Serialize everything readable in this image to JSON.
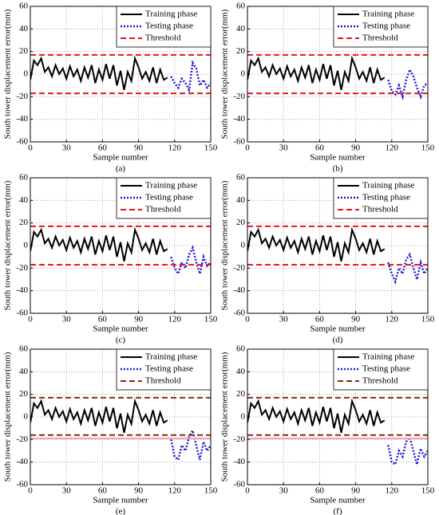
{
  "chart_data": [
    {
      "type": "line",
      "caption": "(a)",
      "xlabel": "Sample number",
      "ylabel": "South tower displacement error(mm)",
      "xlim": [
        0,
        150
      ],
      "ylim": [
        -60,
        60
      ],
      "xticks": [
        0,
        30,
        60,
        90,
        120,
        150
      ],
      "yticks": [
        -60,
        -40,
        -20,
        0,
        20,
        40,
        60
      ],
      "grid": true,
      "legend": "upper right",
      "series": [
        {
          "name": "Training phase",
          "color": "#000000",
          "linestyle": "solid",
          "x": [
            0,
            3,
            6,
            9,
            12,
            15,
            18,
            21,
            24,
            27,
            30,
            33,
            36,
            39,
            42,
            45,
            48,
            51,
            54,
            57,
            60,
            63,
            66,
            69,
            72,
            75,
            78,
            81,
            84,
            87,
            90,
            93,
            96,
            99,
            102,
            105,
            108,
            111,
            114
          ],
          "values": [
            -5,
            12,
            8,
            14,
            2,
            6,
            -2,
            8,
            0,
            5,
            -4,
            7,
            -2,
            4,
            -6,
            6,
            -3,
            8,
            -8,
            4,
            -5,
            9,
            -4,
            8,
            -10,
            3,
            -14,
            2,
            -6,
            14,
            6,
            -4,
            2,
            -6,
            6,
            -8,
            4,
            -5,
            -3
          ]
        },
        {
          "name": "Testing phase",
          "color": "#1f1fd6",
          "linestyle": "dotted",
          "x": [
            117,
            120,
            123,
            126,
            129,
            132,
            135,
            138,
            141,
            144,
            147,
            150
          ],
          "values": [
            -2,
            -8,
            -12,
            -4,
            -8,
            -14,
            10,
            5,
            -10,
            -5,
            -12,
            -8
          ]
        },
        {
          "name": "Threshold",
          "color": "#e8141c",
          "linestyle": "dashed",
          "x": [
            0,
            150,
            0,
            0,
            150
          ],
          "values": [
            17,
            17,
            null,
            -17,
            -17
          ]
        }
      ]
    },
    {
      "type": "line",
      "caption": "(b)",
      "xlabel": "Sample number",
      "ylabel": "South tower displacement error(mm)",
      "xlim": [
        0,
        150
      ],
      "ylim": [
        -60,
        60
      ],
      "xticks": [
        0,
        30,
        60,
        90,
        120,
        150
      ],
      "yticks": [
        -60,
        -40,
        -20,
        0,
        20,
        40,
        60
      ],
      "grid": true,
      "legend": "upper right",
      "series": [
        {
          "name": "Training phase",
          "color": "#000000",
          "linestyle": "solid",
          "x": [
            0,
            3,
            6,
            9,
            12,
            15,
            18,
            21,
            24,
            27,
            30,
            33,
            36,
            39,
            42,
            45,
            48,
            51,
            54,
            57,
            60,
            63,
            66,
            69,
            72,
            75,
            78,
            81,
            84,
            87,
            90,
            93,
            96,
            99,
            102,
            105,
            108,
            111,
            114
          ],
          "values": [
            -5,
            12,
            8,
            14,
            2,
            6,
            -2,
            8,
            0,
            5,
            -4,
            7,
            -2,
            4,
            -6,
            6,
            -3,
            8,
            -8,
            4,
            -5,
            9,
            -4,
            8,
            -10,
            3,
            -14,
            2,
            -6,
            14,
            6,
            -4,
            2,
            -6,
            6,
            -8,
            4,
            -5,
            -3
          ]
        },
        {
          "name": "Testing phase",
          "color": "#1f1fd6",
          "linestyle": "dotted",
          "x": [
            117,
            120,
            123,
            126,
            129,
            132,
            135,
            138,
            141,
            144,
            147,
            150
          ],
          "values": [
            -5,
            -15,
            -18,
            -10,
            -20,
            -5,
            4,
            -2,
            -12,
            -20,
            -10,
            -8
          ]
        },
        {
          "name": "Threshold",
          "color": "#e8141c",
          "linestyle": "dashed",
          "x": [
            0,
            150,
            0,
            0,
            150
          ],
          "values": [
            17,
            17,
            null,
            -17,
            -17
          ]
        }
      ]
    },
    {
      "type": "line",
      "caption": "(c)",
      "xlabel": "Sample number",
      "ylabel": "South tower displacement error(mm)",
      "xlim": [
        0,
        150
      ],
      "ylim": [
        -60,
        60
      ],
      "xticks": [
        0,
        30,
        60,
        90,
        120,
        150
      ],
      "yticks": [
        -60,
        -40,
        -20,
        0,
        20,
        40,
        60
      ],
      "grid": true,
      "legend": "upper right",
      "series": [
        {
          "name": "Training phase",
          "color": "#000000",
          "linestyle": "solid",
          "x": [
            0,
            3,
            6,
            9,
            12,
            15,
            18,
            21,
            24,
            27,
            30,
            33,
            36,
            39,
            42,
            45,
            48,
            51,
            54,
            57,
            60,
            63,
            66,
            69,
            72,
            75,
            78,
            81,
            84,
            87,
            90,
            93,
            96,
            99,
            102,
            105,
            108,
            111,
            114
          ],
          "values": [
            -5,
            12,
            8,
            14,
            2,
            6,
            -2,
            8,
            0,
            5,
            -4,
            7,
            -2,
            4,
            -6,
            6,
            -3,
            8,
            -8,
            4,
            -5,
            9,
            -4,
            8,
            -10,
            3,
            -14,
            2,
            -6,
            14,
            6,
            -4,
            2,
            -6,
            6,
            -8,
            4,
            -5,
            -3
          ]
        },
        {
          "name": "Testing phase",
          "color": "#1f1fd6",
          "linestyle": "dotted",
          "x": [
            117,
            120,
            123,
            126,
            129,
            132,
            135,
            138,
            141,
            144,
            147,
            150
          ],
          "values": [
            -10,
            -20,
            -25,
            -15,
            -20,
            -8,
            -2,
            -15,
            -25,
            -10,
            -18,
            -15
          ]
        },
        {
          "name": "Threshold",
          "color": "#e8141c",
          "linestyle": "dashed",
          "x": [
            0,
            150,
            0,
            0,
            150
          ],
          "values": [
            17,
            17,
            null,
            -17,
            -17
          ]
        }
      ]
    },
    {
      "type": "line",
      "caption": "(d)",
      "xlabel": "Sample number",
      "ylabel": "South tower displacement error(mm)",
      "xlim": [
        0,
        150
      ],
      "ylim": [
        -60,
        60
      ],
      "xticks": [
        0,
        30,
        60,
        90,
        120,
        150
      ],
      "yticks": [
        -60,
        -40,
        -20,
        0,
        20,
        40,
        60
      ],
      "grid": true,
      "legend": "upper right",
      "series": [
        {
          "name": "Training phase",
          "color": "#000000",
          "linestyle": "solid",
          "x": [
            0,
            3,
            6,
            9,
            12,
            15,
            18,
            21,
            24,
            27,
            30,
            33,
            36,
            39,
            42,
            45,
            48,
            51,
            54,
            57,
            60,
            63,
            66,
            69,
            72,
            75,
            78,
            81,
            84,
            87,
            90,
            93,
            96,
            99,
            102,
            105,
            108,
            111,
            114
          ],
          "values": [
            -5,
            12,
            8,
            14,
            2,
            6,
            -2,
            8,
            0,
            5,
            -4,
            7,
            -2,
            4,
            -6,
            6,
            -3,
            8,
            -8,
            4,
            -5,
            9,
            -4,
            8,
            -10,
            3,
            -14,
            2,
            -6,
            14,
            6,
            -4,
            2,
            -6,
            6,
            -8,
            4,
            -5,
            -3
          ]
        },
        {
          "name": "Testing phase",
          "color": "#1f1fd6",
          "linestyle": "dotted",
          "x": [
            117,
            120,
            123,
            126,
            129,
            132,
            135,
            138,
            141,
            144,
            147,
            150
          ],
          "values": [
            -15,
            -25,
            -32,
            -20,
            -25,
            -12,
            -8,
            -20,
            -30,
            -15,
            -25,
            -20
          ]
        },
        {
          "name": "Threshold",
          "color": "#e8141c",
          "linestyle": "dashed",
          "x": [
            0,
            150,
            0,
            0,
            150
          ],
          "values": [
            17,
            17,
            null,
            -17,
            -17
          ]
        }
      ]
    },
    {
      "type": "line",
      "caption": "(e)",
      "xlabel": "Sample number",
      "ylabel": "South tower displacement error(mm)",
      "xlim": [
        0,
        150
      ],
      "ylim": [
        -60,
        60
      ],
      "xticks": [
        0,
        30,
        60,
        90,
        120,
        150
      ],
      "yticks": [
        -60,
        -40,
        -20,
        0,
        20,
        40,
        60
      ],
      "grid": true,
      "legend": "upper right",
      "series": [
        {
          "name": "Training phase",
          "color": "#000000",
          "linestyle": "solid",
          "x": [
            0,
            3,
            6,
            9,
            12,
            15,
            18,
            21,
            24,
            27,
            30,
            33,
            36,
            39,
            42,
            45,
            48,
            51,
            54,
            57,
            60,
            63,
            66,
            69,
            72,
            75,
            78,
            81,
            84,
            87,
            90,
            93,
            96,
            99,
            102,
            105,
            108,
            111,
            114
          ],
          "values": [
            -5,
            12,
            8,
            14,
            2,
            6,
            -2,
            8,
            0,
            5,
            -4,
            7,
            -2,
            4,
            -6,
            6,
            -3,
            8,
            -8,
            4,
            -5,
            9,
            -4,
            8,
            -10,
            3,
            -14,
            2,
            -6,
            14,
            6,
            -4,
            2,
            -6,
            6,
            -8,
            4,
            -5,
            -3
          ]
        },
        {
          "name": "Testing phase",
          "color": "#1f1fd6",
          "linestyle": "dotted",
          "x": [
            117,
            120,
            123,
            126,
            129,
            132,
            135,
            138,
            141,
            144,
            147,
            150
          ],
          "values": [
            -20,
            -35,
            -38,
            -25,
            -30,
            -18,
            -12,
            -25,
            -38,
            -22,
            -30,
            -25
          ]
        },
        {
          "name": "Threshold",
          "color": "#8b2a0a",
          "linestyle": "dashed",
          "x": [
            0,
            150,
            0,
            0,
            150
          ],
          "values": [
            17,
            17,
            null,
            -16,
            -16
          ]
        },
        {
          "color": "#f4a0b8",
          "linestyle": "solid",
          "x": [
            0,
            150
          ],
          "values": [
            -19,
            -19
          ]
        }
      ]
    },
    {
      "type": "line",
      "caption": "(f)",
      "xlabel": "Sample number",
      "ylabel": "South tower displacement error(mm)",
      "xlim": [
        0,
        150
      ],
      "ylim": [
        -60,
        60
      ],
      "xticks": [
        0,
        30,
        60,
        90,
        120,
        150
      ],
      "yticks": [
        -60,
        -40,
        -20,
        0,
        20,
        40,
        60
      ],
      "grid": true,
      "legend": "upper right",
      "series": [
        {
          "name": "Training phase",
          "color": "#000000",
          "linestyle": "solid",
          "x": [
            0,
            3,
            6,
            9,
            12,
            15,
            18,
            21,
            24,
            27,
            30,
            33,
            36,
            39,
            42,
            45,
            48,
            51,
            54,
            57,
            60,
            63,
            66,
            69,
            72,
            75,
            78,
            81,
            84,
            87,
            90,
            93,
            96,
            99,
            102,
            105,
            108,
            111,
            114
          ],
          "values": [
            -5,
            12,
            8,
            14,
            2,
            6,
            -2,
            8,
            0,
            5,
            -4,
            7,
            -2,
            4,
            -6,
            6,
            -3,
            8,
            -8,
            4,
            -5,
            9,
            -4,
            8,
            -10,
            3,
            -14,
            2,
            -6,
            14,
            6,
            -4,
            2,
            -6,
            6,
            -8,
            4,
            -5,
            -3
          ]
        },
        {
          "name": "Testing phase",
          "color": "#1f1fd6",
          "linestyle": "dotted",
          "x": [
            117,
            120,
            123,
            126,
            129,
            132,
            135,
            138,
            141,
            144,
            147,
            150
          ],
          "values": [
            -25,
            -40,
            -42,
            -30,
            -35,
            -22,
            -18,
            -30,
            -42,
            -28,
            -35,
            -30
          ]
        },
        {
          "name": "Threshold",
          "color": "#8b2a0a",
          "linestyle": "dashed",
          "x": [
            0,
            150,
            0,
            0,
            150
          ],
          "values": [
            17,
            17,
            null,
            -16,
            -16
          ]
        },
        {
          "color": "#f4a0b8",
          "linestyle": "solid",
          "x": [
            0,
            150
          ],
          "values": [
            -19,
            -19
          ]
        }
      ]
    }
  ]
}
